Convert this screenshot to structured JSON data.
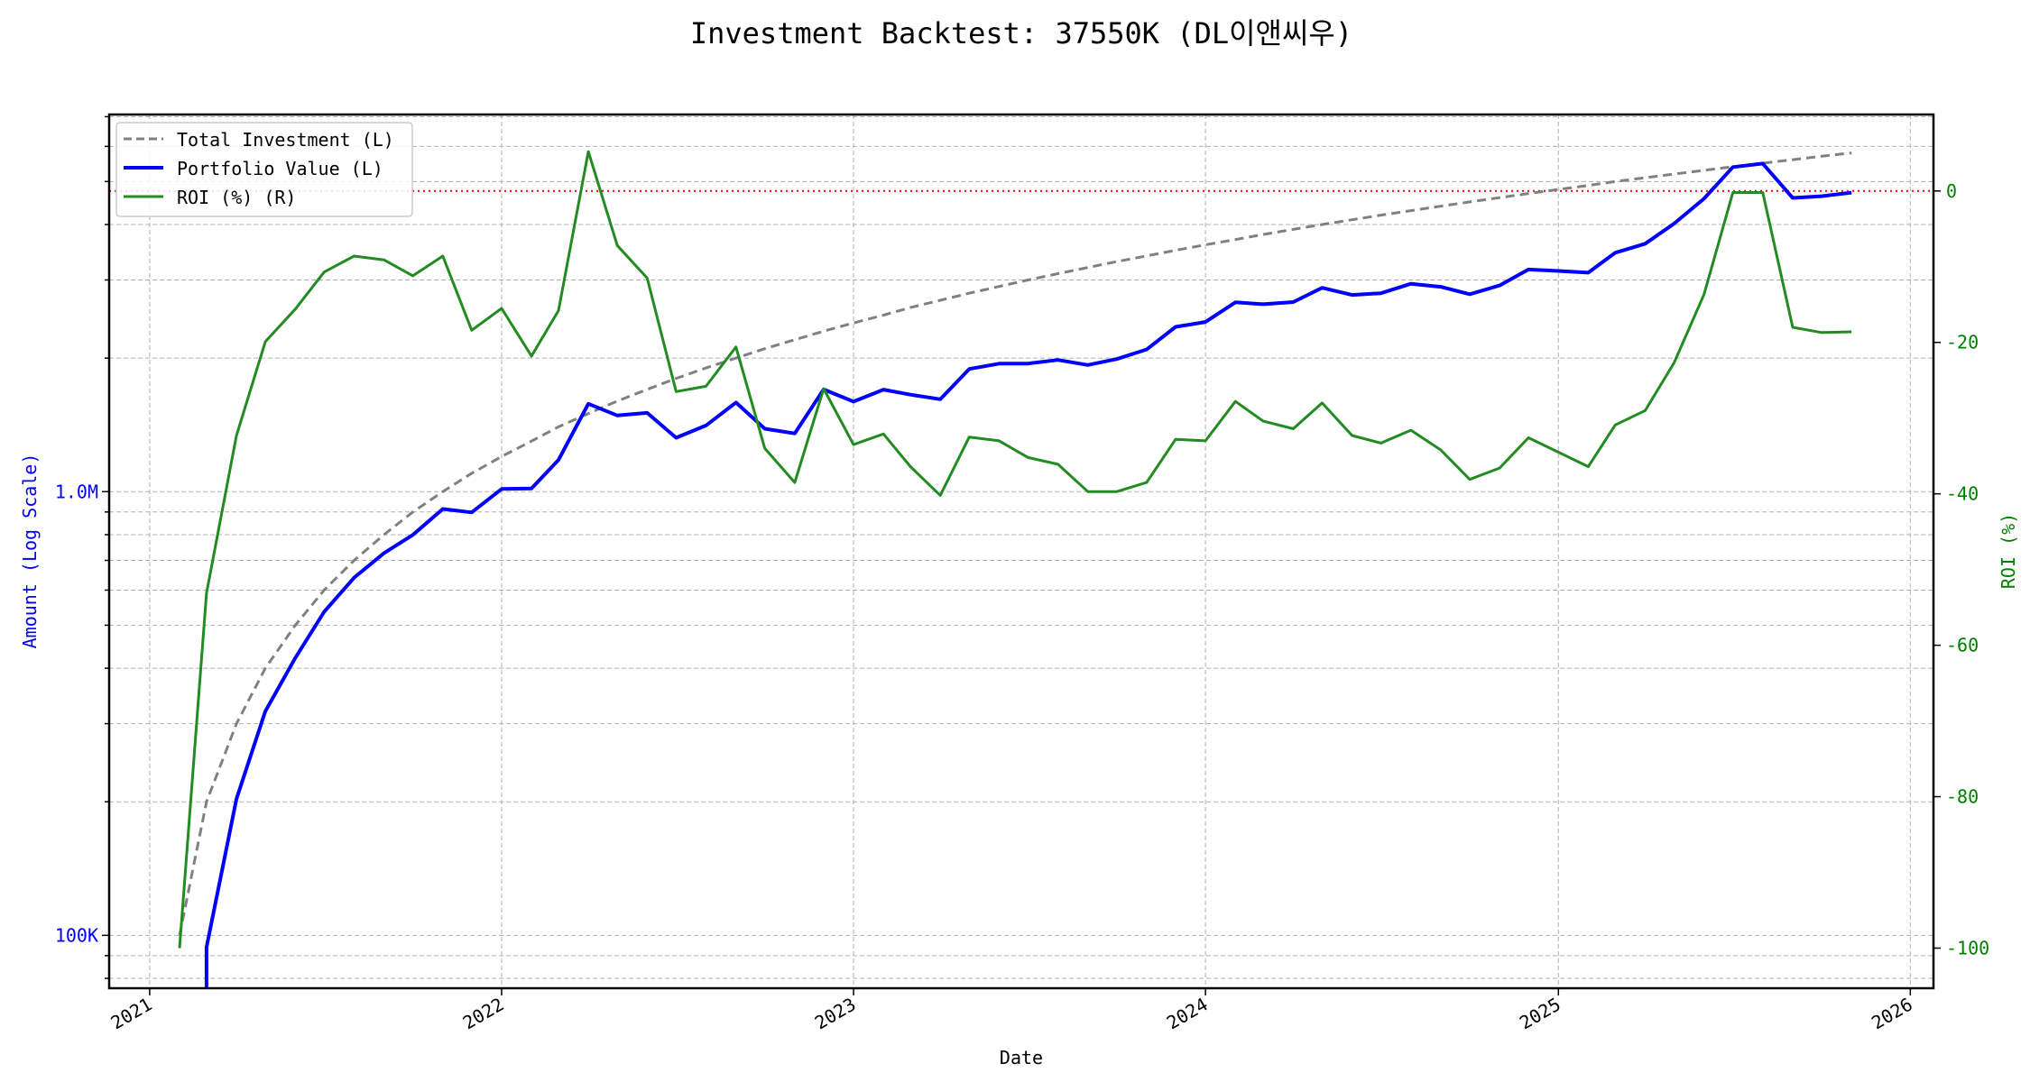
{
  "chart_data": {
    "type": "line",
    "title": "Investment Backtest: 37550K (DL이앤씨우)",
    "xlabel": "Date",
    "ylabel_left": "Amount (Log Scale)",
    "ylabel_right": "ROI (%)",
    "left_scale": "log",
    "left_ylim": [
      76000,
      7080000
    ],
    "right_ylim": [
      -105.3,
      10.1
    ],
    "xlim": [
      "2020-11-20",
      "2026-01-25"
    ],
    "grid": true,
    "legend_position": "upper-left",
    "x_tick_labels": [
      "2021",
      "2022",
      "2023",
      "2024",
      "2025",
      "2026"
    ],
    "left_tick_labels": [
      {
        "value": 100000,
        "label": "100K"
      },
      {
        "value": 1000000,
        "label": "1.0M"
      }
    ],
    "right_ticks": [
      0,
      -20,
      -40,
      -60,
      -80,
      -100
    ],
    "reference_line": {
      "axis": "right",
      "value": 0,
      "color": "#ff0000",
      "style": "dotted"
    },
    "dates": [
      "2021-02",
      "2021-03",
      "2021-04",
      "2021-05",
      "2021-06",
      "2021-07",
      "2021-08",
      "2021-09",
      "2021-10",
      "2021-11",
      "2021-12",
      "2022-01",
      "2022-02",
      "2022-03",
      "2022-04",
      "2022-05",
      "2022-06",
      "2022-07",
      "2022-08",
      "2022-09",
      "2022-10",
      "2022-11",
      "2022-12",
      "2023-01",
      "2023-02",
      "2023-03",
      "2023-04",
      "2023-05",
      "2023-06",
      "2023-07",
      "2023-08",
      "2023-09",
      "2023-10",
      "2023-11",
      "2023-12",
      "2024-01",
      "2024-02",
      "2024-03",
      "2024-04",
      "2024-05",
      "2024-06",
      "2024-07",
      "2024-08",
      "2024-09",
      "2024-10",
      "2024-11",
      "2024-12",
      "2025-01",
      "2025-02",
      "2025-03",
      "2025-04",
      "2025-05",
      "2025-06",
      "2025-07",
      "2025-08",
      "2025-09",
      "2025-10",
      "2025-11"
    ],
    "series": [
      {
        "name": "Total Investment (L)",
        "axis": "left",
        "color": "#808080",
        "style": "dashed",
        "values": [
          100000,
          200000,
          300000,
          400000,
          500000,
          600000,
          700000,
          800000,
          900000,
          1000000,
          1100000,
          1200000,
          1300000,
          1400000,
          1500000,
          1600000,
          1700000,
          1800000,
          1900000,
          2000000,
          2100000,
          2200000,
          2300000,
          2400000,
          2500000,
          2600000,
          2700000,
          2800000,
          2900000,
          3000000,
          3100000,
          3200000,
          3300000,
          3400000,
          3500000,
          3600000,
          3700000,
          3800000,
          3900000,
          4000000,
          4100000,
          4200000,
          4300000,
          4400000,
          4500000,
          4600000,
          4700000,
          4800000,
          4900000,
          5000000,
          5100000,
          5200000,
          5300000,
          5400000,
          5500000,
          5600000,
          5700000,
          5800000
        ]
      },
      {
        "name": "Portfolio Value (L)",
        "axis": "left",
        "color": "#0000ff",
        "style": "solid",
        "values": [
          0,
          94000,
          203000,
          320000,
          422000,
          536000,
          640000,
          727000,
          799000,
          914000,
          898000,
          1014000,
          1017000,
          1179000,
          1578000,
          1485000,
          1505000,
          1323000,
          1410000,
          1588000,
          1386000,
          1353000,
          1700000,
          1596000,
          1698000,
          1654000,
          1615000,
          1890000,
          1943000,
          1944000,
          1981000,
          1930000,
          1990000,
          2091000,
          2352000,
          2412000,
          2671000,
          2645000,
          2675000,
          2880000,
          2776000,
          2801000,
          2941000,
          2895000,
          2786000,
          2916000,
          3168000,
          3144000,
          3116000,
          3455000,
          3621000,
          4020000,
          4574000,
          5389000,
          5489000,
          4592000,
          4634000,
          4721000
        ]
      },
      {
        "name": "ROI (%) (R)",
        "axis": "right",
        "color": "#228b22",
        "style": "solid",
        "values": [
          -100,
          -53.1,
          -32.3,
          -19.9,
          -15.6,
          -10.7,
          -8.6,
          -9.1,
          -11.2,
          -8.6,
          -18.4,
          -15.5,
          -21.8,
          -15.8,
          5.2,
          -7.2,
          -11.5,
          -26.5,
          -25.8,
          -20.6,
          -34.0,
          -38.5,
          -26.1,
          -33.5,
          -32.1,
          -36.4,
          -40.2,
          -32.5,
          -33.0,
          -35.2,
          -36.1,
          -39.7,
          -39.7,
          -38.5,
          -32.8,
          -33.0,
          -27.8,
          -30.4,
          -31.4,
          -28.0,
          -32.3,
          -33.3,
          -31.6,
          -34.2,
          -38.1,
          -36.6,
          -32.6,
          -34.5,
          -36.4,
          -30.9,
          -29.0,
          -22.7,
          -13.7,
          -0.2,
          -0.2,
          -18.0,
          -18.7,
          -18.6
        ]
      }
    ],
    "colors": {
      "left_axis_text": "#0000ff",
      "right_axis_text": "#008000"
    }
  }
}
